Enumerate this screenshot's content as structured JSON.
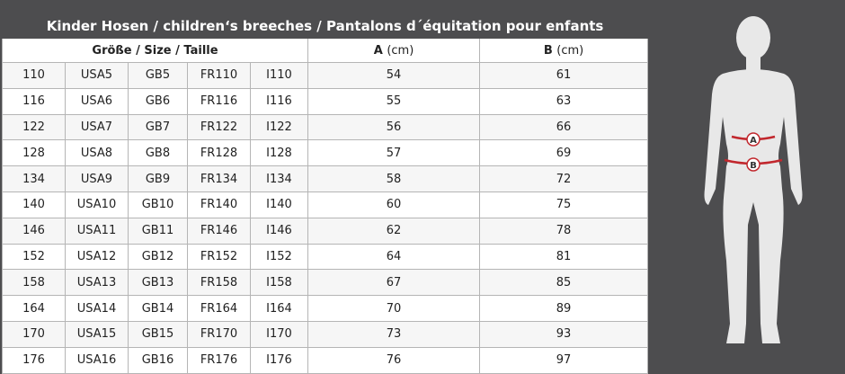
{
  "table": {
    "title": "Kinder Hosen / children‘s breeches /  Pantalons d´équitation pour enfants",
    "header": {
      "size": "Größe / Size / Taille",
      "a": {
        "label": "A",
        "unit": "(cm)"
      },
      "b": {
        "label": "B",
        "unit": "(cm)"
      }
    },
    "rows": [
      [
        110,
        "USA5",
        "GB5",
        "FR110",
        "I110",
        54,
        61
      ],
      [
        116,
        "USA6",
        "GB6",
        "FR116",
        "I116",
        55,
        63
      ],
      [
        122,
        "USA7",
        "GB7",
        "FR122",
        "I122",
        56,
        66
      ],
      [
        128,
        "USA8",
        "GB8",
        "FR128",
        "I128",
        57,
        69
      ],
      [
        134,
        "USA9",
        "GB9",
        "FR134",
        "I134",
        58,
        72
      ],
      [
        140,
        "USA10",
        "GB10",
        "FR140",
        "I140",
        60,
        75
      ],
      [
        146,
        "USA11",
        "GB11",
        "FR146",
        "I146",
        62,
        78
      ],
      [
        152,
        "USA12",
        "GB12",
        "FR152",
        "I152",
        64,
        81
      ],
      [
        158,
        "USA13",
        "GB13",
        "FR158",
        "I158",
        67,
        85
      ],
      [
        164,
        "USA14",
        "GB14",
        "FR164",
        "I164",
        70,
        89
      ],
      [
        170,
        "USA15",
        "GB15",
        "FR170",
        "I170",
        73,
        93
      ],
      [
        176,
        "USA16",
        "GB16",
        "FR176",
        "I176",
        76,
        97
      ]
    ]
  },
  "figure": {
    "labels": [
      "A",
      "B"
    ]
  }
}
